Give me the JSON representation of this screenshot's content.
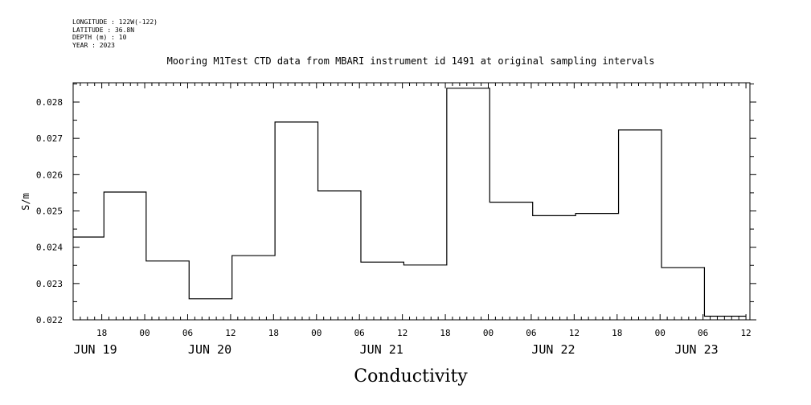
{
  "meta_lines": [
    "LONGITUDE : 122W(-122)",
    "LATITUDE : 36.8N",
    "DEPTH (m) : 10",
    "YEAR : 2023"
  ],
  "chart_data": {
    "type": "line",
    "step": true,
    "title": "Mooring M1Test CTD data from MBARI instrument id 1491 at original sampling intervals",
    "ylabel": "S/m",
    "xlabel": "Conductivity",
    "ylim": [
      0.022,
      0.0285
    ],
    "yticks": [
      "0.022",
      "0.023",
      "0.024",
      "0.025",
      "0.026",
      "0.027",
      "0.028"
    ],
    "xlim_hours": [
      0,
      94.5
    ],
    "x_tick_labels": [
      "18",
      "00",
      "06",
      "12",
      "18",
      "00",
      "06",
      "12",
      "18",
      "00",
      "06",
      "12",
      "18",
      "00",
      "06",
      "12"
    ],
    "day_labels": [
      "JUN 19",
      "JUN 20",
      "JUN 21",
      "JUN 22",
      "JUN 23"
    ],
    "series": [
      {
        "x_hours": [
          0,
          4.3,
          10.2,
          16.2,
          22.2,
          28.2,
          34.2,
          40.2,
          46.2,
          52.2,
          58.2,
          64.2,
          70.2,
          76.2,
          82.2,
          88.2,
          94
        ],
        "values": [
          0.02428,
          0.02552,
          0.02362,
          0.02258,
          0.02377,
          0.02745,
          0.02555,
          0.02359,
          0.02351,
          0.02838,
          0.02524,
          0.02487,
          0.02493,
          0.02723,
          0.02344,
          0.0221,
          0.0221
        ]
      }
    ],
    "grid": false
  }
}
